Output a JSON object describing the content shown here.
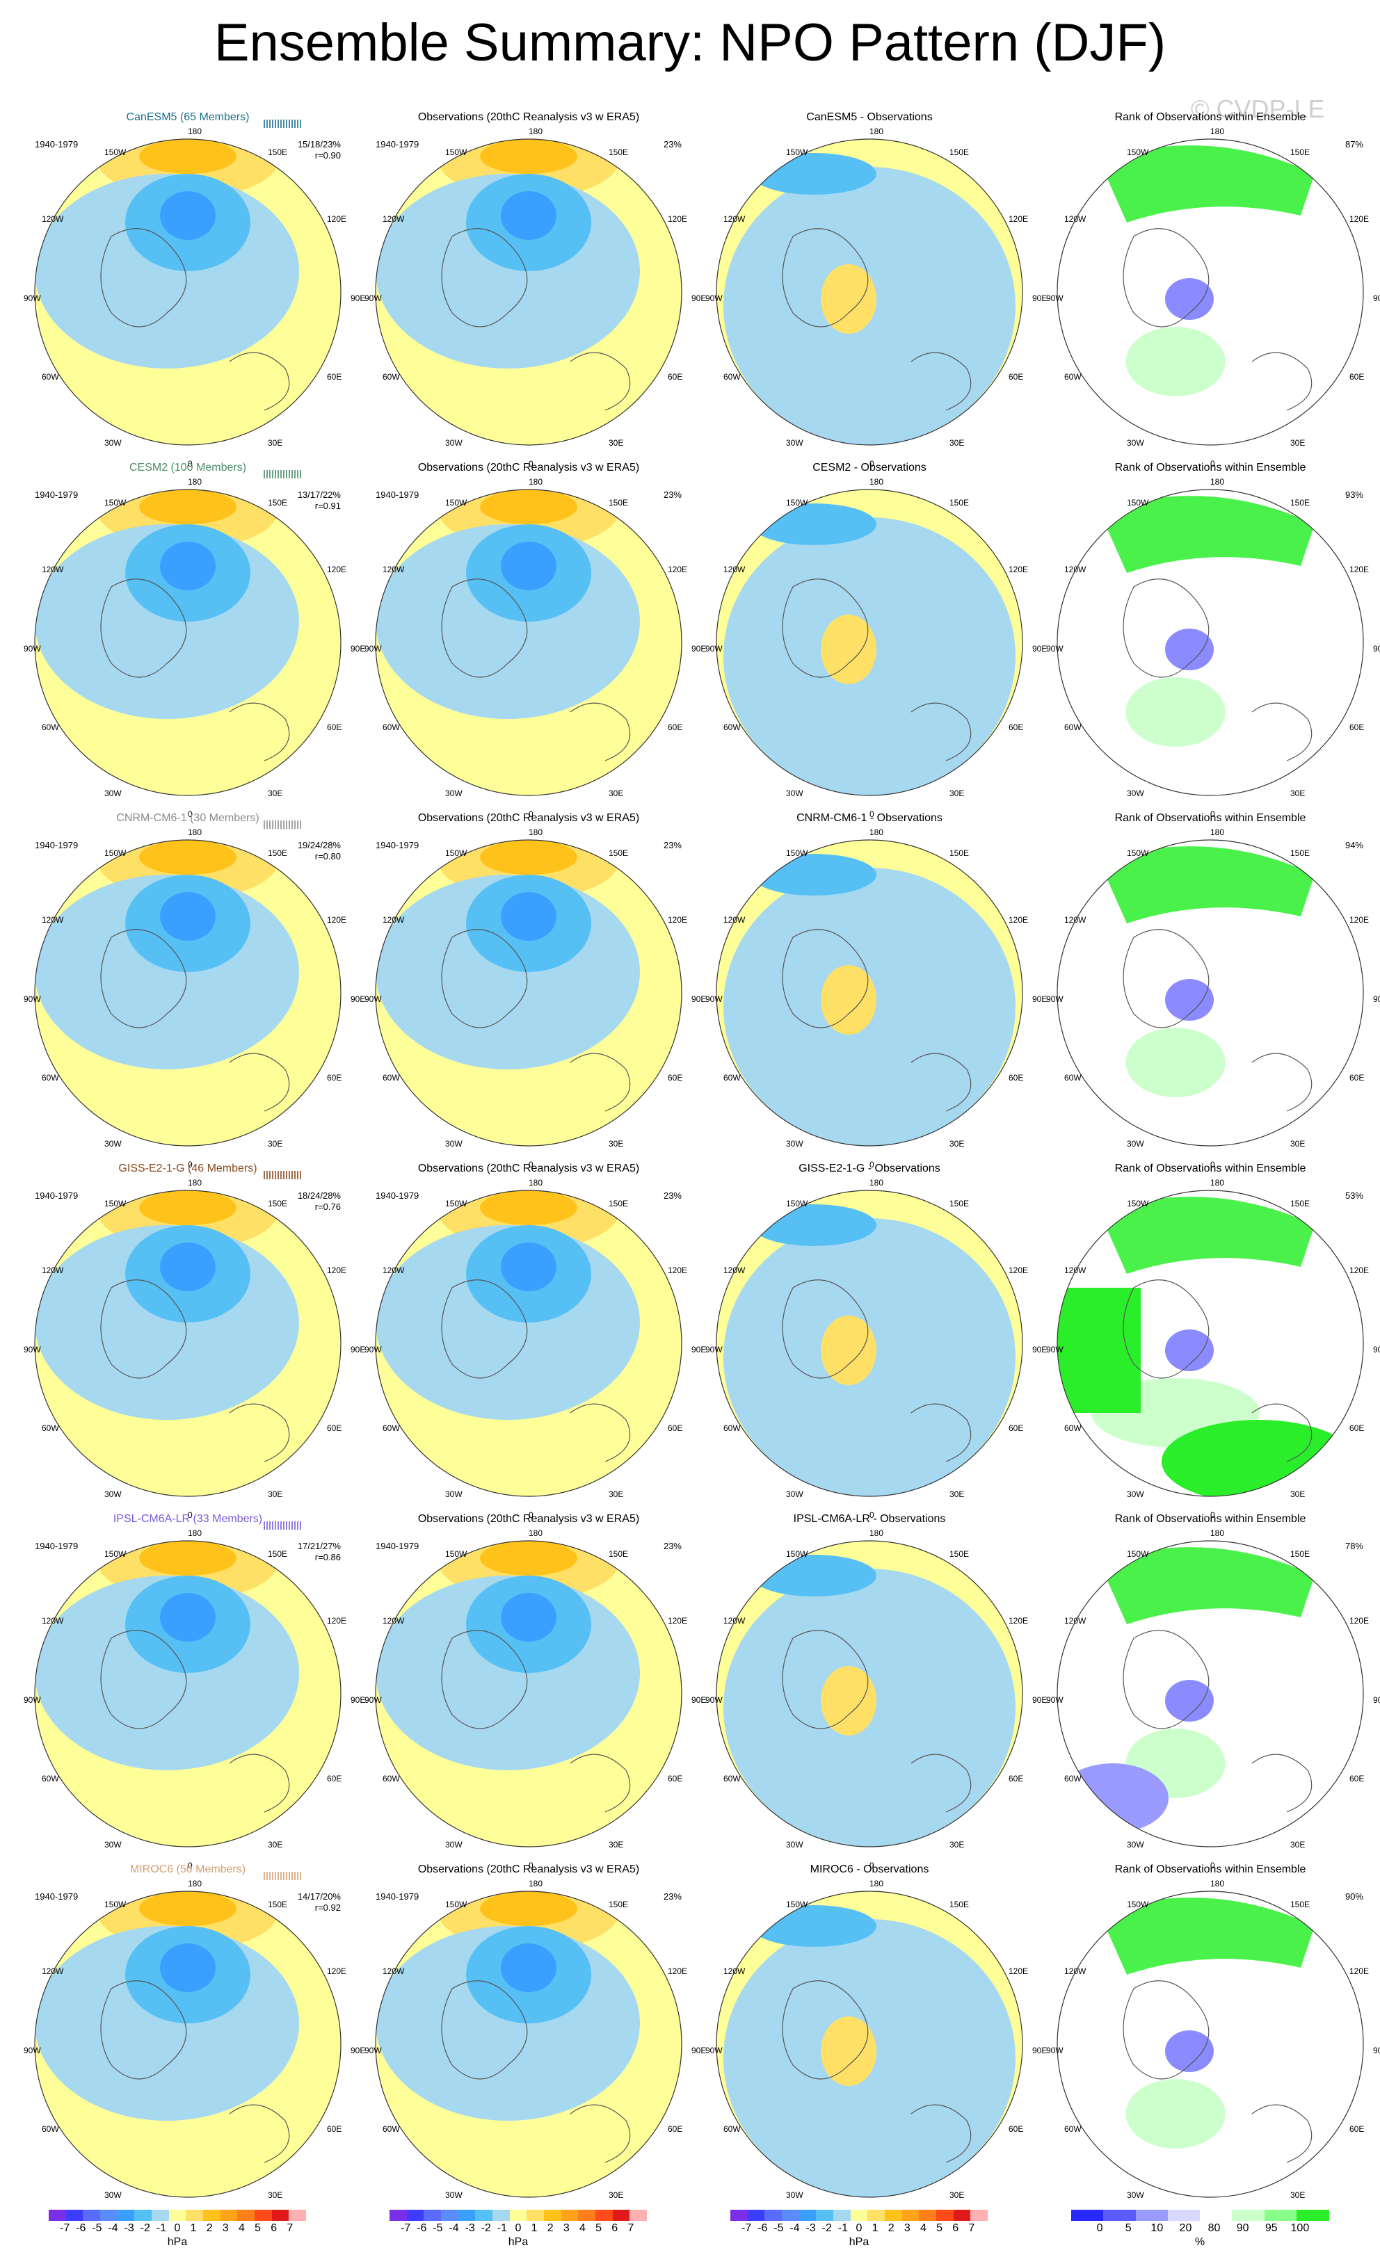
{
  "title": "Ensemble Summary: NPO Pattern (DJF)",
  "watermark": "© CVDP-LE",
  "longitude_labels": [
    "180",
    "150E",
    "120E",
    "90E",
    "60E",
    "30E",
    "0",
    "30W",
    "60W",
    "90W",
    "120W",
    "150W"
  ],
  "rows": [
    {
      "model": "CanESM5",
      "model_title": "CanESM5 (65 Members)",
      "color": "#1b6f8a",
      "period": "1940-1979",
      "stats": "15/18/23%",
      "r": "r=0.90",
      "obs_pct": "23%",
      "diff_title": "CanESM5 - Observations",
      "rank_pct": "87%"
    },
    {
      "model": "CESM2",
      "model_title": "CESM2 (100 Members)",
      "color": "#4a8b6a",
      "period": "1940-1979",
      "stats": "13/17/22%",
      "r": "r=0.91",
      "obs_pct": "23%",
      "diff_title": "CESM2 - Observations",
      "rank_pct": "93%"
    },
    {
      "model": "CNRM-CM6-1",
      "model_title": "CNRM-CM6-1 (30 Members)",
      "color": "#8a8a8a",
      "period": "1940-1979",
      "stats": "19/24/28%",
      "r": "r=0.80",
      "obs_pct": "23%",
      "diff_title": "CNRM-CM6-1 - Observations",
      "rank_pct": "94%"
    },
    {
      "model": "GISS-E2-1-G",
      "model_title": "GISS-E2-1-G (46 Members)",
      "color": "#8a4a1b",
      "period": "1940-1979",
      "stats": "18/24/28%",
      "r": "r=0.76",
      "obs_pct": "23%",
      "diff_title": "GISS-E2-1-G - Observations",
      "rank_pct": "53%"
    },
    {
      "model": "IPSL-CM6A-LR",
      "model_title": "IPSL-CM6A-LR (33 Members)",
      "color": "#7a5ad8",
      "period": "1940-1979",
      "stats": "17/21/27%",
      "r": "r=0.86",
      "obs_pct": "23%",
      "diff_title": "IPSL-CM6A-LR - Observations",
      "rank_pct": "78%"
    },
    {
      "model": "MIROC6",
      "model_title": "MIROC6 (50 Members)",
      "color": "#d4a070",
      "period": "1940-1979",
      "stats": "14/17/20%",
      "r": "r=0.92",
      "obs_pct": "23%",
      "diff_title": "MIROC6 - Observations",
      "rank_pct": "90%"
    }
  ],
  "obs_title": "Observations (20thC Reanalysis v3 w ERA5)",
  "rank_title": "Rank of Observations within Ensemble",
  "colorbar_hpa": {
    "labels": [
      "-7",
      "-6",
      "-5",
      "-4",
      "-3",
      "-2",
      "-1",
      "0",
      "1",
      "2",
      "3",
      "4",
      "5",
      "6",
      "7"
    ],
    "unit": "hPa",
    "colors": [
      "#7a2ee8",
      "#3d3dff",
      "#5a6cff",
      "#5a8cff",
      "#3aa0ff",
      "#56c0f5",
      "#a6d8f0",
      "#ffff99",
      "#ffe066",
      "#ffc21a",
      "#ffa31a",
      "#ff7f1a",
      "#ff4a1a",
      "#e01a1a",
      "#ffb0b0"
    ]
  },
  "colorbar_rank": {
    "labels": [
      "0",
      "5",
      "10",
      "20",
      "80",
      "90",
      "95",
      "100"
    ],
    "unit": "%",
    "colors": [
      "#2828ff",
      "#5a5aff",
      "#9a9aff",
      "#d8d8ff",
      "#ffffff",
      "#ccffcc",
      "#88ff88",
      "#2aee2a"
    ]
  },
  "chart_data": {
    "type": "heatmap",
    "title": "Ensemble Summary: NPO Pattern (DJF)",
    "description_panels": [
      "model ensemble mean",
      "observations",
      "model minus observations",
      "rank of observations"
    ],
    "rows": [
      "CanESM5",
      "CESM2",
      "CNRM-CM6-1",
      "GISS-E2-1-G",
      "IPSL-CM6A-LR",
      "MIROC6"
    ],
    "pattern_correlation": [
      0.9,
      0.91,
      0.8,
      0.76,
      0.86,
      0.92
    ],
    "explained_variance_model_min_mean_max_pct": [
      [
        15,
        18,
        23
      ],
      [
        13,
        17,
        22
      ],
      [
        19,
        24,
        28
      ],
      [
        18,
        24,
        28
      ],
      [
        17,
        21,
        27
      ],
      [
        14,
        17,
        20
      ]
    ],
    "explained_variance_obs_pct": 23,
    "rank_pct_area": [
      87,
      93,
      94,
      53,
      78,
      90
    ],
    "color_scale_hpa": [
      -7,
      7
    ],
    "rank_scale_pct": [
      0,
      100
    ]
  }
}
